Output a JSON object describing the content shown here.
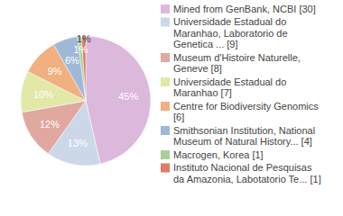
{
  "chart_data": {
    "type": "pie",
    "categories": [
      "Mined from GenBank, NCBI [30]",
      "Universidade Estadual do Maranhao, Laboratorio de Genetica ... [9]",
      "Museum d'Histoire Naturelle, Geneve [8]",
      "Universidade Estadual do Maranhao [7]",
      "Centre for Biodiversity Genomics [6]",
      "Smithsonian Institution, National Museum of Natural History... [4]",
      "Macrogen, Korea [1]",
      "Instituto Nacional de Pesquisas da Amazonia, Labotatorio Te... [1]"
    ],
    "values": [
      45,
      13,
      12,
      10,
      9,
      6,
      1,
      1
    ],
    "value_labels": [
      "45%",
      "13%",
      "12%",
      "10%",
      "9%",
      "6%",
      "1%",
      "1%"
    ],
    "colors": [
      "#dcb8dc",
      "#ccd8e8",
      "#e0a8a0",
      "#e2e8a8",
      "#f0b080",
      "#a0b8d8",
      "#a8d098",
      "#e07a6a"
    ],
    "data_labels": true,
    "legend": "right"
  }
}
